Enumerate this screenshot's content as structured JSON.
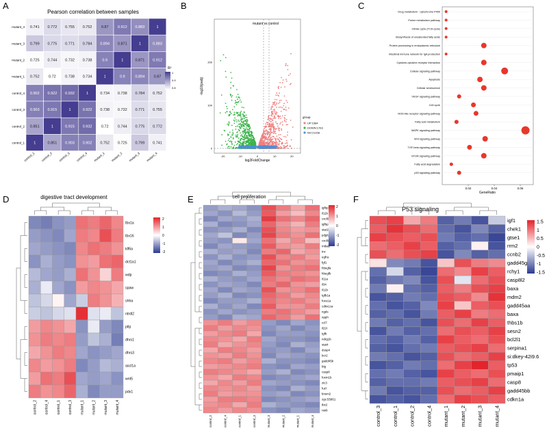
{
  "panels": {
    "A": {
      "letter": "A",
      "title": "Pearson correlation between samples",
      "samples": [
        "control_1",
        "control_2",
        "control_3",
        "control_4",
        "mutant_1",
        "mutant_2",
        "mutant_3",
        "mutant_4"
      ],
      "rows": [
        "mutant_4",
        "mutant_3",
        "mutant_2",
        "mutant_1",
        "control_4",
        "control_3",
        "control_2",
        "control_1"
      ],
      "values": [
        [
          0.741,
          0.772,
          0.755,
          0.752,
          0.87,
          0.912,
          0.883,
          1
        ],
        [
          0.799,
          0.775,
          0.771,
          0.784,
          0.894,
          0.871,
          1,
          0.883
        ],
        [
          0.725,
          0.744,
          0.732,
          0.738,
          0.9,
          1,
          0.871,
          0.912
        ],
        [
          0.752,
          0.72,
          0.738,
          0.734,
          1,
          0.9,
          0.894,
          0.87
        ],
        [
          0.902,
          0.922,
          0.932,
          1,
          0.734,
          0.738,
          0.784,
          0.752
        ],
        [
          0.903,
          0.915,
          1,
          0.922,
          0.738,
          0.732,
          0.771,
          0.755
        ],
        [
          0.851,
          1,
          0.915,
          0.932,
          0.72,
          0.744,
          0.775,
          0.772
        ],
        [
          1,
          0.851,
          0.903,
          0.902,
          0.752,
          0.725,
          0.799,
          0.741
        ]
      ],
      "legend_title": "R²",
      "legend_ticks": [
        "1",
        "0.9",
        "0.8"
      ]
    },
    "B": {
      "letter": "B",
      "title": "mutant vs control",
      "xlabel": "log2FoldChange",
      "ylabel": "-log10(padj)",
      "x_ticks": [
        "-20",
        "-10",
        "0",
        "10",
        "20"
      ],
      "y_ticks": [
        "0",
        "100",
        "200"
      ],
      "legend_title": "group",
      "legend": [
        {
          "label": "UP:1584",
          "color": "#f08080"
        },
        {
          "label": "DOWN:1763",
          "color": "#3cb44b"
        },
        {
          "label": "NO:21158",
          "color": "#4f8fd8"
        }
      ]
    },
    "C": {
      "letter": "C",
      "xlabel": "GeneRatio",
      "x_ticks": [
        "0.02",
        "0.04",
        "0.06"
      ],
      "xlim": [
        0,
        0.07
      ],
      "pathways": [
        {
          "name": "Drug metabolism - cytochrome P450",
          "ratio": 0.003,
          "size": 2
        },
        {
          "name": "Purine metabolism pathway",
          "ratio": 0.003,
          "size": 2
        },
        {
          "name": "Citrate cycle (TCA cycle)",
          "ratio": 0.003,
          "size": 2
        },
        {
          "name": "Biosynthesis of unsaturated fatty acids",
          "ratio": 0.003,
          "size": 2
        },
        {
          "name": "Protein processing in endoplasmic reticulum",
          "ratio": 0.032,
          "size": 4
        },
        {
          "name": "Intestinal immune network for IgA production",
          "ratio": 0.003,
          "size": 2
        },
        {
          "name": "Cytokine-cytokine receptor interaction",
          "ratio": 0.032,
          "size": 4
        },
        {
          "name": "Cellular signaling pathway",
          "ratio": 0.048,
          "size": 5
        },
        {
          "name": "Apoptosis",
          "ratio": 0.029,
          "size": 4
        },
        {
          "name": "Cellular senescence",
          "ratio": 0.032,
          "size": 4
        },
        {
          "name": "VEGF signaling pathway",
          "ratio": 0.013,
          "size": 3
        },
        {
          "name": "Cell cycle",
          "ratio": 0.024,
          "size": 3.5
        },
        {
          "name": "NOD-like receptor signaling pathway",
          "ratio": 0.026,
          "size": 3.5
        },
        {
          "name": "Fatty acid metabolism",
          "ratio": 0.011,
          "size": 3
        },
        {
          "name": "MAPK signaling pathway",
          "ratio": 0.064,
          "size": 6
        },
        {
          "name": "Wnt signaling pathway",
          "ratio": 0.033,
          "size": 4
        },
        {
          "name": "TGF-beta signaling pathway",
          "ratio": 0.021,
          "size": 3.5
        },
        {
          "name": "mTOR signaling pathway",
          "ratio": 0.032,
          "size": 4
        },
        {
          "name": "Fatty acid degradation",
          "ratio": 0.007,
          "size": 2.5
        },
        {
          "name": "p53 signaling pathway",
          "ratio": 0.013,
          "size": 3
        }
      ]
    },
    "D": {
      "letter": "D",
      "title": "digestive tract development",
      "columns": [
        "control_2",
        "control_4",
        "control_1",
        "control_3",
        "mutant_1",
        "mutant_2",
        "mutant_3",
        "mutant_4"
      ],
      "genes": [
        "tbx1a",
        "tbx16",
        "klf6a",
        "dct1a1",
        "wdp",
        "spaw",
        "shha",
        "ntrdl2",
        "pltp",
        "dhrs1",
        "dhrs3",
        "ascl1a",
        "wnt5",
        "pdx1"
      ],
      "values": [
        [
          -1.2,
          -1.3,
          -1.1,
          -1.0,
          1.3,
          1.2,
          1.4,
          1.1
        ],
        [
          -1.0,
          -1.1,
          -1.2,
          -0.9,
          1.2,
          1.1,
          1.6,
          1.2
        ],
        [
          -0.9,
          -1.0,
          -1.1,
          -1.2,
          1.1,
          1.3,
          1.2,
          1.0
        ],
        [
          -1.1,
          -0.8,
          -1.0,
          -1.1,
          1.0,
          0.9,
          1.3,
          1.4
        ],
        [
          -0.7,
          -0.9,
          -1.0,
          -0.8,
          1.3,
          1.0,
          0.4,
          1.2
        ],
        [
          -0.8,
          -0.2,
          -0.9,
          -1.1,
          0.9,
          1.1,
          1.0,
          0.8
        ],
        [
          -0.6,
          -0.4,
          0.1,
          -0.9,
          -0.5,
          1.2,
          1.0,
          0.7
        ],
        [
          -0.5,
          -0.6,
          -0.4,
          -0.3,
          1.9,
          -0.3,
          -0.2,
          -0.6
        ],
        [
          0.9,
          1.1,
          1.0,
          0.8,
          -1.1,
          -0.2,
          -1.0,
          -1.2
        ],
        [
          1.0,
          1.2,
          1.1,
          1.2,
          -1.0,
          -0.6,
          -0.8,
          -1.3
        ],
        [
          0.8,
          1.0,
          1.2,
          1.1,
          -0.9,
          -1.1,
          -1.0,
          -0.9
        ],
        [
          1.1,
          0.9,
          1.0,
          1.2,
          -1.2,
          -1.0,
          -0.7,
          -0.8
        ],
        [
          0.9,
          1.3,
          1.2,
          1.6,
          -0.9,
          -1.0,
          -0.9,
          -1.1
        ],
        [
          1.2,
          1.0,
          1.1,
          1.4,
          -0.8,
          -1.2,
          -1.0,
          -1.0
        ]
      ],
      "legend_ticks": [
        "2",
        "1",
        "0",
        "-1",
        "-2"
      ]
    },
    "E": {
      "letter": "E",
      "title": "cell proliferation",
      "columns": [
        "control_2",
        "control_4",
        "control_1",
        "control_3",
        "mutant_3",
        "mutant_2",
        "mutant_1",
        "mutant_4"
      ],
      "genes": [
        "igfbp1b",
        "il11b",
        "cxcl8b",
        "igfbp1a",
        "stat1b",
        "pdgfd",
        "cxcl8a",
        "mtkab",
        "tnc",
        "egfra",
        "fgf1",
        "hbegfa",
        "hbegfb",
        "il11a",
        "il34",
        "il11b",
        "tgfb1a",
        "foxo1a",
        "cdkn1ca",
        "ngds",
        "npph",
        "ccl7",
        "il22r",
        "tgfb",
        "ndrg1b",
        "stat4",
        "dusp4",
        "bcr2",
        "gadd45b",
        "btg",
        "casp8",
        "foxm1b",
        "zic3",
        "fuzl",
        "bnsm2",
        "zgc:55861",
        "tbx2",
        "rasb"
      ],
      "values": [
        [
          -1.0,
          -0.8,
          -0.9,
          -1.1,
          1.6,
          1.2,
          0.8,
          1.3
        ],
        [
          -0.9,
          -1.1,
          -0.7,
          -1.0,
          1.5,
          0.9,
          0.6,
          1.1
        ],
        [
          -1.2,
          -0.9,
          -1.0,
          -0.8,
          1.8,
          1.3,
          1.1,
          1.4
        ],
        [
          -0.8,
          -1.2,
          -1.1,
          -0.9,
          1.4,
          1.0,
          0.7,
          1.2
        ],
        [
          -1.1,
          -1.0,
          -0.8,
          -1.2,
          1.6,
          1.1,
          0.9,
          1.0
        ],
        [
          -0.9,
          -0.6,
          -1.2,
          -1.0,
          1.7,
          1.2,
          1.0,
          1.3
        ],
        [
          -1.0,
          -1.1,
          0.2,
          -0.9,
          1.3,
          0.8,
          1.1,
          0.6
        ],
        [
          -1.2,
          -0.9,
          -1.0,
          -1.1,
          1.5,
          1.0,
          0.9,
          1.2
        ],
        [
          -0.8,
          -1.0,
          -0.9,
          -1.2,
          1.2,
          1.4,
          0.8,
          1.0
        ],
        [
          -1.1,
          -0.8,
          -1.1,
          -1.0,
          1.6,
          1.1,
          1.2,
          0.9
        ],
        [
          -0.9,
          -1.2,
          -1.0,
          -0.8,
          1.4,
          1.3,
          1.0,
          1.1
        ],
        [
          -1.0,
          -0.9,
          -1.2,
          -1.1,
          1.7,
          1.0,
          1.2,
          1.3
        ],
        [
          -1.2,
          -1.1,
          -0.8,
          -1.0,
          1.5,
          1.2,
          1.1,
          1.0
        ],
        [
          -0.8,
          -1.0,
          -1.1,
          -0.9,
          1.3,
          1.1,
          1.3,
          1.2
        ],
        [
          -1.1,
          -0.9,
          -1.0,
          -1.2,
          1.2,
          1.4,
          1.0,
          0.9
        ],
        [
          -0.9,
          -1.2,
          -0.9,
          -1.0,
          1.6,
          1.0,
          1.1,
          1.3
        ],
        [
          -1.0,
          -0.8,
          -1.2,
          -1.1,
          1.4,
          1.2,
          0.9,
          1.1
        ],
        [
          -1.2,
          -1.0,
          -1.0,
          -0.8,
          1.3,
          1.1,
          1.2,
          1.0
        ],
        [
          -0.8,
          -1.1,
          -0.9,
          -1.2,
          1.5,
          1.0,
          1.0,
          1.2
        ],
        [
          -1.1,
          -0.9,
          -1.1,
          -1.0,
          1.2,
          1.3,
          1.1,
          0.9
        ],
        [
          -1.0,
          -1.2,
          -0.8,
          -0.9,
          1.4,
          1.2,
          0.9,
          1.3
        ],
        [
          1.0,
          1.2,
          0.9,
          1.1,
          -1.0,
          -1.2,
          -0.9,
          -1.1
        ],
        [
          1.2,
          0.9,
          1.1,
          1.0,
          -1.1,
          -0.9,
          -1.2,
          -1.0
        ],
        [
          0.9,
          1.1,
          1.2,
          0.8,
          -1.2,
          -1.0,
          -1.0,
          -1.1
        ],
        [
          1.1,
          1.0,
          0.8,
          1.2,
          -0.9,
          -1.1,
          -1.1,
          -1.2
        ],
        [
          1.2,
          0.8,
          1.0,
          1.1,
          -1.0,
          -1.2,
          -0.8,
          -1.0
        ],
        [
          0.8,
          1.2,
          1.1,
          0.9,
          -1.1,
          -1.0,
          -1.2,
          -0.9
        ],
        [
          1.0,
          0.9,
          1.2,
          1.0,
          -1.2,
          -0.9,
          -1.0,
          -1.1
        ],
        [
          1.1,
          1.2,
          0.9,
          1.1,
          -0.8,
          -1.1,
          -1.1,
          -1.2
        ],
        [
          0.9,
          1.0,
          1.1,
          1.2,
          -1.1,
          -1.2,
          -0.9,
          -1.0
        ],
        [
          1.2,
          1.1,
          1.0,
          0.8,
          -1.0,
          -0.8,
          -1.2,
          -1.1
        ],
        [
          1.0,
          0.8,
          1.2,
          1.1,
          -1.2,
          -1.1,
          -1.0,
          -0.9
        ],
        [
          0.8,
          1.1,
          0.9,
          1.2,
          -0.9,
          -1.0,
          -1.1,
          -1.2
        ],
        [
          1.1,
          1.0,
          1.1,
          0.9,
          -1.1,
          -1.2,
          -0.8,
          -1.0
        ],
        [
          1.2,
          0.9,
          1.0,
          1.0,
          -1.0,
          -0.9,
          -1.2,
          -1.1
        ],
        [
          0.9,
          1.2,
          1.2,
          1.1,
          -1.2,
          -1.1,
          -1.0,
          -0.9
        ],
        [
          1.0,
          1.1,
          0.8,
          1.2,
          -0.8,
          -1.0,
          -1.1,
          -1.2
        ],
        [
          1.1,
          0.9,
          1.1,
          1.0,
          -1.1,
          -1.2,
          -0.9,
          -1.0
        ]
      ],
      "legend_ticks": [
        "2",
        "1",
        "0",
        "-1",
        "-2"
      ]
    },
    "F": {
      "letter": "F",
      "title": "P53 signaling",
      "columns": [
        "control_3",
        "control_1",
        "control_2",
        "control_4",
        "mutant_1",
        "mutant_2",
        "mutant_3",
        "mutant_4"
      ],
      "genes": [
        "igf1",
        "chek1",
        "gtse1",
        "rrm2",
        "ccnb2",
        "gadd45ga",
        "rchy1",
        "casp8l2",
        "baxa",
        "mdm2",
        "gadd45aa",
        "baxa",
        "thbs1b",
        "sesn2",
        "bcl2l1",
        "serpina1",
        "si:dkey-42i9.6",
        "tp53",
        "pmaip1",
        "casp8",
        "gadd45bb",
        "cdkn1a"
      ],
      "values": [
        [
          1.2,
          1.3,
          0.6,
          0.9,
          -1.2,
          -1.0,
          -1.3,
          -0.4
        ],
        [
          1.1,
          1.4,
          1.2,
          1.0,
          -1.1,
          -1.3,
          -0.9,
          -1.2
        ],
        [
          1.3,
          1.2,
          1.1,
          1.2,
          -1.0,
          -1.2,
          -1.1,
          -1.4
        ],
        [
          1.0,
          1.1,
          1.3,
          1.1,
          -1.2,
          -1.1,
          0.1,
          -1.3
        ],
        [
          1.2,
          1.0,
          1.2,
          1.3,
          -1.3,
          -0.9,
          -1.2,
          -1.1
        ],
        [
          0.2,
          -0.9,
          -1.0,
          -1.3,
          0.4,
          1.2,
          0.9,
          0.8
        ],
        [
          -1.1,
          -0.3,
          -1.2,
          -1.4,
          1.0,
          0.8,
          1.3,
          1.1
        ],
        [
          -1.2,
          -1.0,
          -0.9,
          -1.3,
          1.2,
          -0.2,
          1.0,
          1.2
        ],
        [
          -1.0,
          0.1,
          -1.1,
          -1.2,
          1.1,
          0.9,
          1.2,
          1.3
        ],
        [
          -1.3,
          -1.2,
          -1.0,
          -1.1,
          1.2,
          1.1,
          0.8,
          1.4
        ],
        [
          -1.1,
          -1.3,
          -1.2,
          -0.9,
          1.3,
          0.4,
          1.1,
          1.2
        ],
        [
          -1.2,
          -1.1,
          -1.3,
          -1.0,
          1.1,
          1.3,
          0.9,
          1.0
        ],
        [
          -1.0,
          -1.2,
          -1.1,
          -1.3,
          1.2,
          1.0,
          1.3,
          1.1
        ],
        [
          -1.3,
          -1.0,
          -1.2,
          -1.1,
          1.0,
          1.2,
          1.1,
          1.3
        ],
        [
          -1.1,
          -1.2,
          -1.0,
          -1.2,
          1.3,
          1.1,
          1.0,
          1.2
        ],
        [
          -1.2,
          -1.3,
          -1.1,
          -1.0,
          1.1,
          1.2,
          1.3,
          1.0
        ],
        [
          -1.0,
          -1.1,
          -1.3,
          -1.2,
          1.2,
          1.0,
          1.1,
          1.3
        ],
        [
          -1.3,
          -1.2,
          -1.0,
          -1.1,
          1.0,
          1.3,
          1.5,
          1.1
        ],
        [
          -1.1,
          -1.0,
          -1.2,
          -1.3,
          1.3,
          1.1,
          1.0,
          1.2
        ],
        [
          -1.2,
          -1.1,
          -1.1,
          -1.0,
          1.1,
          1.2,
          1.3,
          1.0
        ],
        [
          -1.0,
          -1.3,
          -1.2,
          -1.2,
          1.2,
          1.0,
          1.1,
          1.3
        ],
        [
          -1.3,
          -1.2,
          -1.3,
          -1.1,
          1.0,
          1.3,
          1.2,
          1.1
        ]
      ],
      "legend_ticks": [
        "1.5",
        "1",
        "0.5",
        "0",
        "-0.5",
        "-1",
        "-1.5"
      ]
    }
  }
}
